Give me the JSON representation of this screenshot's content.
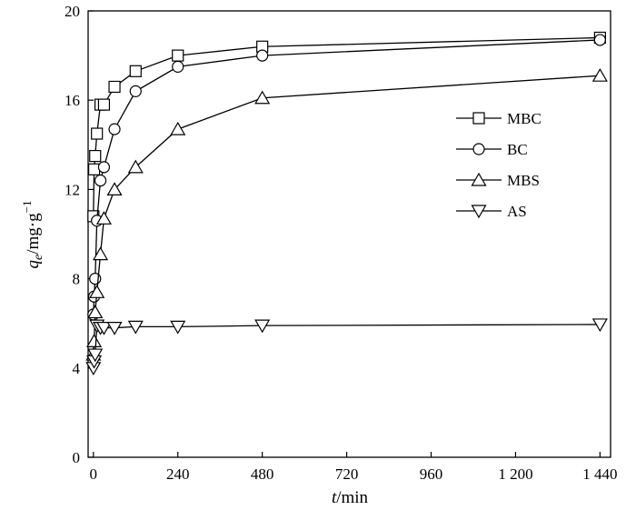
{
  "chart_data": {
    "type": "line",
    "title": "",
    "xlabel": {
      "var": "t",
      "unit": "/min"
    },
    "ylabel": {
      "var": "q",
      "sub": "e",
      "unit": "/mg·g",
      "sup": "−1"
    },
    "xlim": [
      -15,
      1470
    ],
    "ylim": [
      0,
      20
    ],
    "xticks": [
      {
        "value": 0,
        "label": "0"
      },
      {
        "value": 240,
        "label": "240"
      },
      {
        "value": 480,
        "label": "480"
      },
      {
        "value": 720,
        "label": "720"
      },
      {
        "value": 960,
        "label": "960"
      },
      {
        "value": 1200,
        "label": "1 200"
      },
      {
        "value": 1440,
        "label": "1 440"
      }
    ],
    "yticks": [
      {
        "value": 0,
        "label": "0"
      },
      {
        "value": 4,
        "label": "4"
      },
      {
        "value": 8,
        "label": "8"
      },
      {
        "value": 12,
        "label": "12"
      },
      {
        "value": 16,
        "label": "16"
      },
      {
        "value": 20,
        "label": "20"
      }
    ],
    "grid": false,
    "legend_position": "right",
    "series": [
      {
        "name": "MBC",
        "marker": "square",
        "x": [
          0,
          2,
          5,
          10,
          20,
          30,
          60,
          120,
          240,
          480,
          1440
        ],
        "y": [
          10.8,
          12.9,
          13.5,
          14.5,
          15.8,
          15.8,
          16.6,
          17.3,
          18.0,
          18.4,
          18.8
        ]
      },
      {
        "name": "BC",
        "marker": "circle",
        "x": [
          0,
          2,
          5,
          10,
          20,
          30,
          60,
          120,
          240,
          480,
          1440
        ],
        "y": [
          6.4,
          7.2,
          8.0,
          10.6,
          12.4,
          13.0,
          14.7,
          16.4,
          17.5,
          18.0,
          18.7
        ]
      },
      {
        "name": "MBS",
        "marker": "triangle-up",
        "x": [
          0,
          2,
          5,
          10,
          20,
          30,
          60,
          120,
          240,
          480,
          1440
        ],
        "y": [
          4.6,
          5.2,
          6.5,
          7.4,
          9.1,
          10.7,
          12.0,
          13.0,
          14.7,
          16.1,
          17.1
        ]
      },
      {
        "name": "AS",
        "marker": "triangle-down",
        "x": [
          0,
          2,
          5,
          10,
          20,
          30,
          60,
          120,
          240,
          480,
          1440
        ],
        "y": [
          4.0,
          4.3,
          4.6,
          5.9,
          5.8,
          5.8,
          5.8,
          5.85,
          5.85,
          5.9,
          5.95
        ]
      }
    ]
  }
}
